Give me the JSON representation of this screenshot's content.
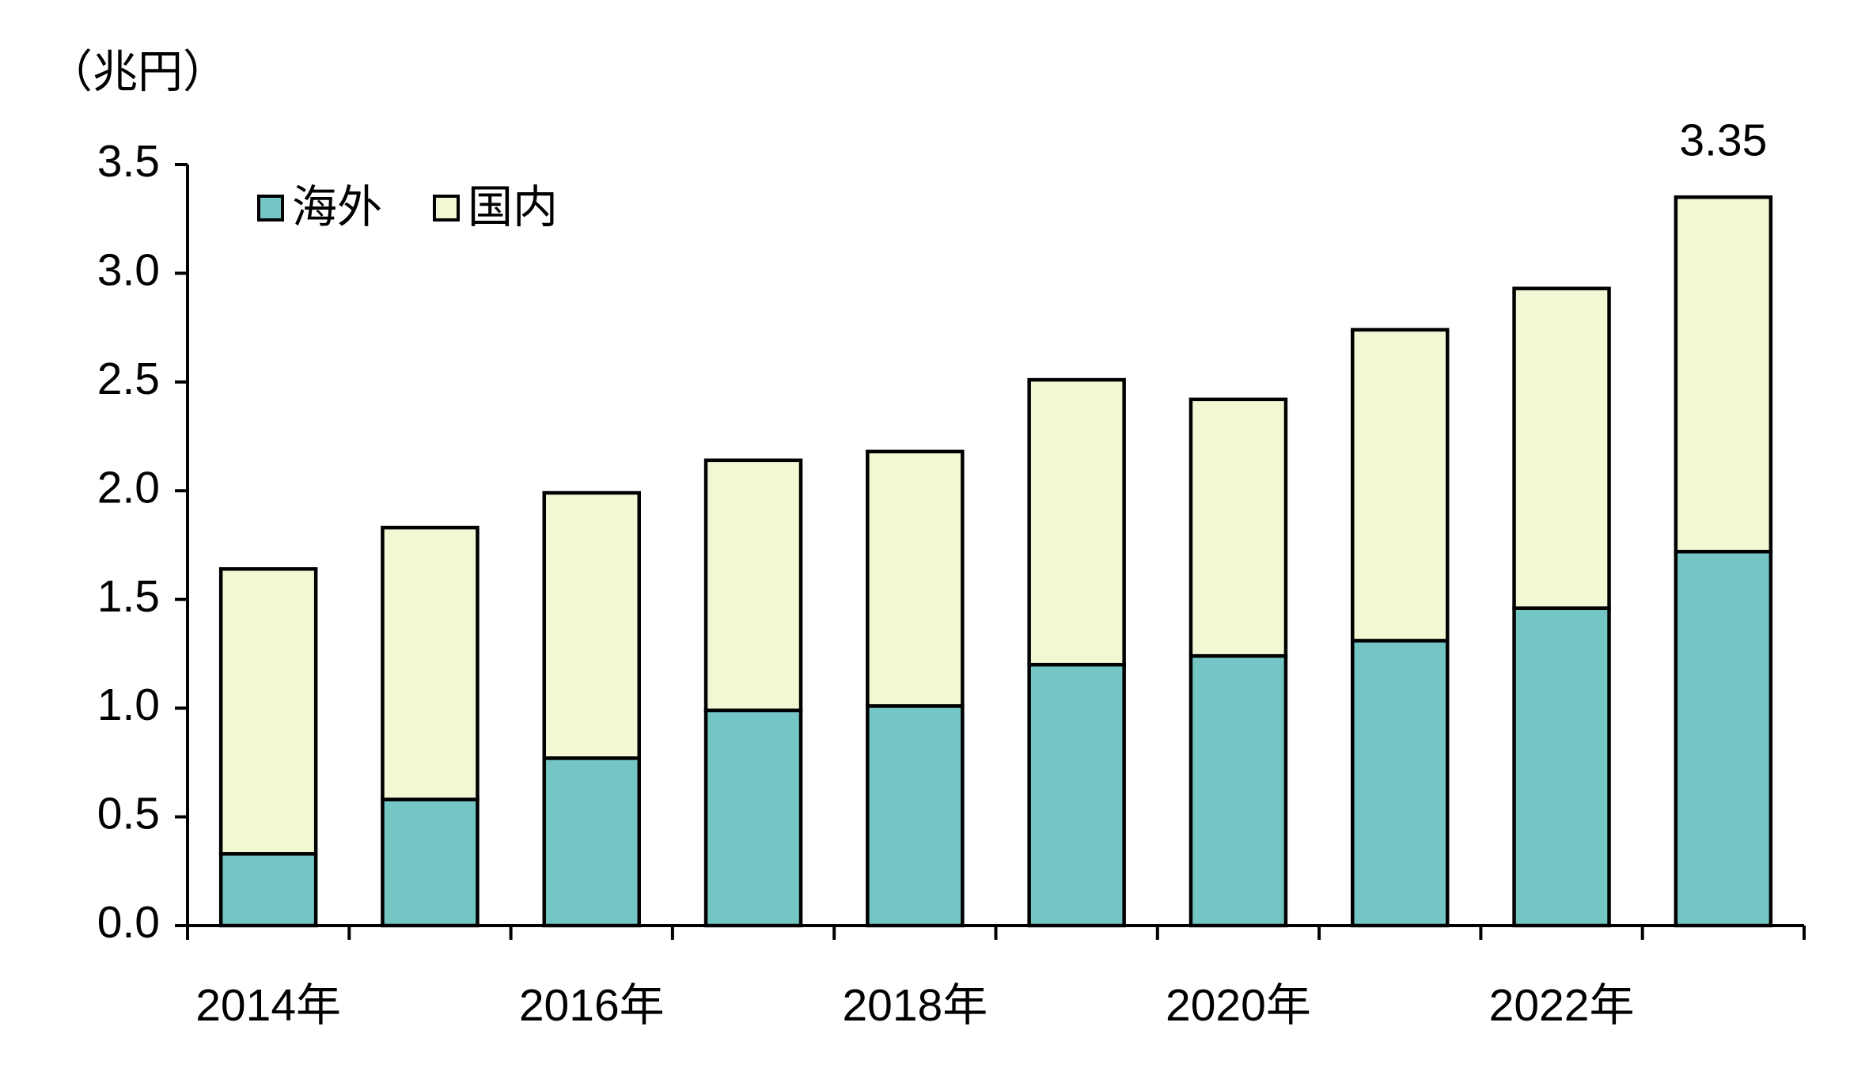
{
  "chart_data": {
    "type": "stacked_bar",
    "y_label": "（兆円）",
    "categories": [
      "2014年",
      null,
      "2016年",
      null,
      "2018年",
      null,
      "2020年",
      null,
      "2022年",
      null
    ],
    "series": [
      {
        "name": "海外",
        "color": "#74c6c4",
        "values": [
          0.33,
          0.58,
          0.77,
          0.99,
          1.01,
          1.2,
          1.24,
          1.31,
          1.46,
          1.72
        ]
      },
      {
        "name": "国内",
        "color": "#f3f7d4",
        "values": [
          1.31,
          1.25,
          1.22,
          1.15,
          1.17,
          1.31,
          1.18,
          1.43,
          1.47,
          1.63
        ]
      }
    ],
    "annotation": "3.35",
    "ylim": [
      0,
      3.5
    ],
    "yticks": [
      {
        "value": 0,
        "label": "0.0"
      },
      0.5,
      {
        "value": 1,
        "label": "1.0"
      },
      1.5,
      {
        "value": 2,
        "label": "2.0"
      },
      2.5,
      {
        "value": 3,
        "label": "3.0"
      },
      3.5
    ],
    "legend": "upper left"
  }
}
